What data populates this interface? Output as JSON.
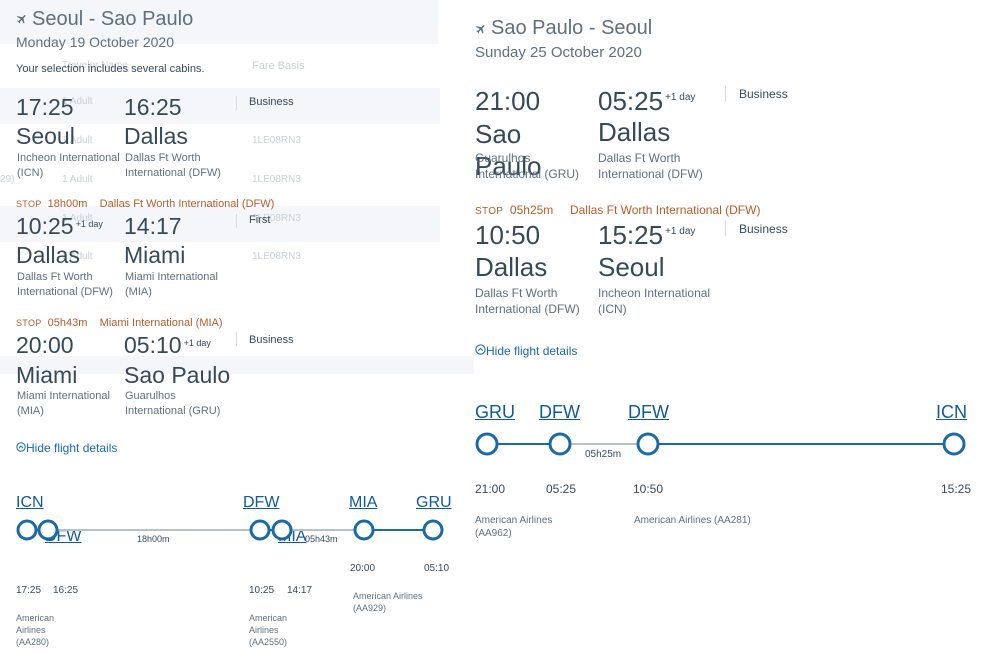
{
  "left": {
    "title": "Seoul - Sao Paulo",
    "date": "Monday 19 October 2020",
    "notice": "Your selection includes several cabins.",
    "ghost_header_a": "Traveler Name",
    "ghost_header_b": "Fare Basis",
    "ghost_adult": "1 Adult",
    "ghost_fare": "1LE08RN3",
    "ghost_price": "29)",
    "segments": [
      {
        "dep_time": "17:25",
        "dep_city": "Seoul",
        "dep_airport": "Incheon International (ICN)",
        "arr_time": "16:25",
        "arr_nextday": "",
        "arr_city": "Dallas",
        "arr_airport": "Dallas Ft Worth International (DFW)",
        "cabin": "Business"
      },
      {
        "dep_time": "10:25",
        "dep_nextday": "+1 day",
        "dep_city": "Dallas",
        "dep_airport": "Dallas Ft Worth International (DFW)",
        "arr_time": "14:17",
        "arr_city": "Miami",
        "arr_airport": "Miami International (MIA)",
        "cabin": "First"
      },
      {
        "dep_time": "20:00",
        "dep_city": "Miami",
        "dep_airport": "Miami International (MIA)",
        "arr_time": "05:10",
        "arr_nextday": "+1 day",
        "arr_city": "Sao Paulo",
        "arr_airport": "Guarulhos International (GRU)",
        "cabin": "Business"
      }
    ],
    "stops": [
      {
        "label": "Stop",
        "duration": "18h00m",
        "airport": "Dallas Ft Worth International (DFW)"
      },
      {
        "label": "Stop",
        "duration": "05h43m",
        "airport": "Miami International (MIA)"
      }
    ],
    "hide_details": "Hide flight details",
    "timeline": {
      "codes": [
        "ICN",
        "DFW",
        "DFW",
        "MIA",
        "MIA",
        "GRU"
      ],
      "durations": [
        "18h00m",
        "05h43m"
      ],
      "times": [
        "17:25",
        "16:25",
        "10:25",
        "14:17",
        "20:00",
        "05:10"
      ],
      "carriers": [
        "American Airlines (AA280)",
        "American Airlines (AA2550)",
        "American Airlines (AA929)"
      ]
    }
  },
  "right": {
    "title": "Sao Paulo - Seoul",
    "date": "Sunday 25 October 2020",
    "segments": [
      {
        "dep_time": "21:00",
        "dep_city": "Sao Paulo",
        "dep_airport": "Guarulhos International (GRU)",
        "arr_time": "05:25",
        "arr_nextday": "+1 day",
        "arr_city": "Dallas",
        "arr_airport": "Dallas Ft Worth International (DFW)",
        "cabin": "Business"
      },
      {
        "dep_time": "10:50",
        "dep_city": "Dallas",
        "dep_airport": "Dallas Ft Worth International (DFW)",
        "arr_time": "15:25",
        "arr_nextday": "+1 day",
        "arr_city": "Seoul",
        "arr_airport": "Incheon International (ICN)",
        "cabin": "Business"
      }
    ],
    "stop": {
      "label": "Stop",
      "duration": "05h25m",
      "airport": "Dallas Ft Worth International (DFW)"
    },
    "hide_details": "Hide flight details",
    "timeline": {
      "codes": [
        "GRU",
        "DFW",
        "DFW",
        "ICN"
      ],
      "duration": "05h25m",
      "times": [
        "21:00",
        "05:25",
        "10:50",
        "15:25"
      ],
      "carriers": [
        "American Airlines (AA962)",
        "American Airlines (AA281)"
      ]
    }
  },
  "colors": {
    "accent": "#1a6aa8",
    "stop": "#b65c2b",
    "node": "#1a6aa8",
    "gray_line": "#b8c0c8"
  },
  "icons": {
    "plane": "airplane-icon",
    "collapse": "circle-chevron-up-icon"
  }
}
